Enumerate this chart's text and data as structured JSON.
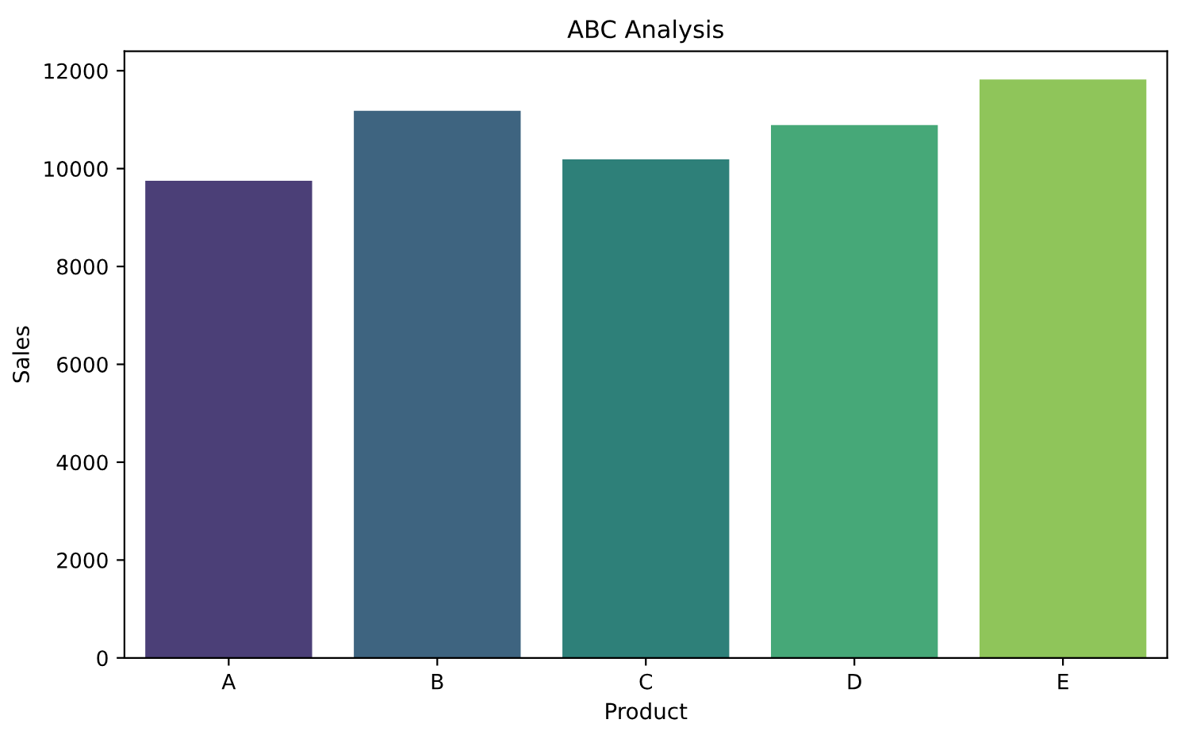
{
  "chart_data": {
    "type": "bar",
    "title": "ABC Analysis",
    "xlabel": "Product",
    "ylabel": "Sales",
    "categories": [
      "A",
      "B",
      "C",
      "D",
      "E"
    ],
    "values": [
      9750,
      11180,
      10190,
      10890,
      11820
    ],
    "colors": [
      "#4b3f77",
      "#3e6480",
      "#2e8079",
      "#46a878",
      "#8fc55a"
    ],
    "ylim": [
      0,
      12400
    ],
    "yticks": [
      0,
      2000,
      4000,
      6000,
      8000,
      10000,
      12000
    ]
  }
}
